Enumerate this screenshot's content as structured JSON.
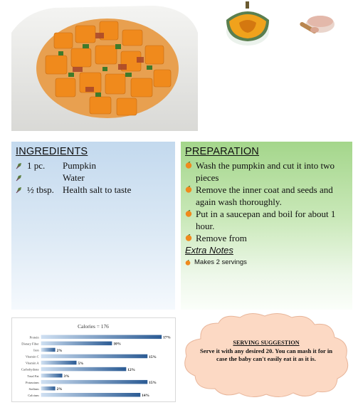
{
  "ingredients": {
    "title": "INGREDIENTS",
    "items": [
      {
        "qty": "1 pc.",
        "name": "Pumpkin"
      },
      {
        "qty": "",
        "name": "Water"
      },
      {
        "qty": "½ tbsp.",
        "name": "Health salt to taste"
      }
    ]
  },
  "preparation": {
    "title": "PREPARATION",
    "steps": [
      "Wash the pumpkin and cut it into two pieces",
      "Remove the inner coat and seeds and again wash thoroughly.",
      "Put in a saucepan and boil for about 1 hour.",
      "Remove from"
    ],
    "extra_notes_title": "Extra Notes",
    "notes": [
      "Makes 2 servings"
    ]
  },
  "serving": {
    "title": "SERVING SUGGESTION",
    "text": "Serve it with any desired 20. You can mash it for in case the baby can't easily eat it as it is."
  },
  "colors": {
    "ingredients_bg": "#c3d9ee",
    "preparation_bg": "#a4d68b",
    "cloud_fill": "#fcd9c4",
    "bar_dark": "#2b5b94",
    "bar_light": "#cfe0f2",
    "pumpkin": "#f08a1c"
  },
  "chart_data": {
    "type": "bar",
    "orientation": "horizontal",
    "title": "Calories = 176",
    "categories": [
      "Protein",
      "Dietary Fiber",
      "Iron",
      "Vitamin C",
      "Vitamin A",
      "Carbohydrate",
      "Total Fat",
      "Potassium",
      "Sodium",
      "Calcium"
    ],
    "values": [
      17,
      10,
      2,
      15,
      5,
      12,
      3,
      15,
      2,
      14
    ],
    "value_labels": [
      "17%",
      "10%",
      "2%",
      "15%",
      "5%",
      "12%",
      "3%",
      "15%",
      "2%",
      "14%"
    ],
    "xlim": [
      0,
      17
    ],
    "grid": false,
    "legend": "none"
  }
}
